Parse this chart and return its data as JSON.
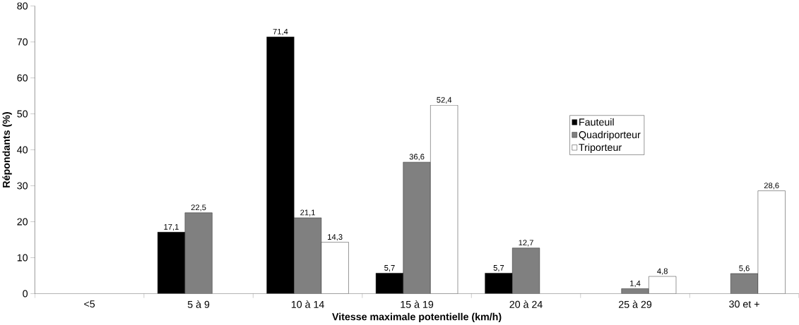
{
  "chart_data": {
    "type": "bar",
    "xlabel": "Vitesse maximale potentielle (km/h)",
    "ylabel": "Répondants (%)",
    "categories": [
      "<5",
      "5 à 9",
      "10 à 14",
      "15 à 19",
      "20 à 24",
      "25 à 29",
      "30 et +"
    ],
    "series": [
      {
        "name": "Fauteuil",
        "color": "#000000",
        "values": [
          null,
          17.1,
          71.4,
          5.7,
          5.7,
          null,
          null
        ],
        "value_labels": [
          null,
          "17,1",
          "71,4",
          "5,7",
          "5,7",
          null,
          null
        ]
      },
      {
        "name": "Quadriporteur",
        "color": "#808080",
        "values": [
          null,
          22.5,
          21.1,
          36.6,
          12.7,
          1.4,
          5.6
        ],
        "value_labels": [
          null,
          "22,5",
          "21,1",
          "36,6",
          "12,7",
          "1,4",
          "5,6"
        ]
      },
      {
        "name": "Triporteur",
        "color": "#ffffff",
        "values": [
          null,
          null,
          14.3,
          52.4,
          null,
          4.8,
          28.6
        ],
        "value_labels": [
          null,
          null,
          "14,3",
          "52,4",
          null,
          "4,8",
          "28,6"
        ]
      }
    ],
    "ylim": [
      0,
      80
    ],
    "yticks": [
      0,
      10,
      20,
      30,
      40,
      50,
      60,
      70,
      80
    ],
    "grid": false,
    "legend": "right"
  }
}
